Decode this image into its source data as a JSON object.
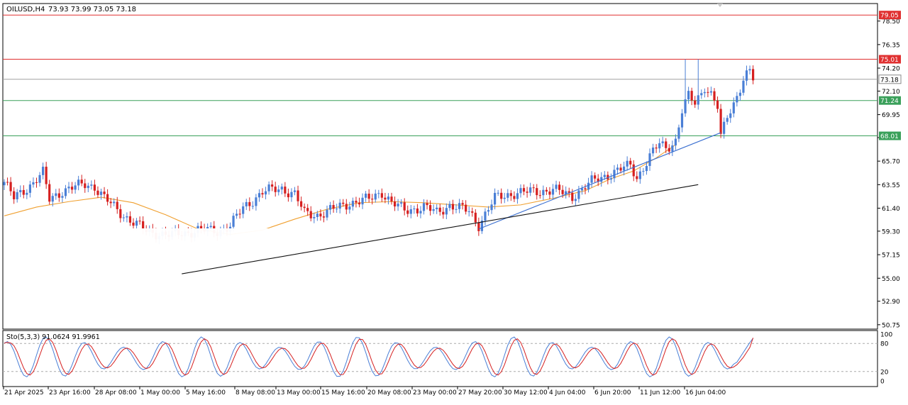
{
  "header": {
    "symbol": "OILUSD,H4",
    "ohlc": "73.93 73.99 73.05 73.18"
  },
  "indicator": {
    "label": "Sto(5,3,3) 91.0624 91.9961",
    "levels": [
      100,
      80,
      20,
      0
    ]
  },
  "colors": {
    "bull": "#4a7fd6",
    "bear": "#d62020",
    "ma": "#f0a030",
    "resistance": "#e03030",
    "support": "#3aa05a",
    "trend_blue": "#3a6fd0",
    "trend_black": "#111111",
    "stoch_main": "#4a7fd6",
    "stoch_signal": "#d62020"
  },
  "chart_data": {
    "type": "candlestick",
    "y_ticks": [
      78.5,
      76.35,
      74.2,
      72.1,
      69.95,
      67.85,
      65.7,
      63.55,
      61.4,
      59.3,
      57.15,
      55.0,
      52.9,
      50.75
    ],
    "ylim": [
      50.35,
      80.1
    ],
    "x_ticks": [
      "21 Apr 2025",
      "23 Apr 16:00",
      "28 Apr 08:00",
      "1 May 00:00",
      "5 May 16:00",
      "8 May 08:00",
      "13 May 00:00",
      "15 May 16:00",
      "20 May 08:00",
      "23 May 00:00",
      "27 May 20:00",
      "30 May 12:00",
      "4 Jun 04:00",
      "6 Jun 20:00",
      "11 Jun 12:00",
      "16 Jun 04:00"
    ],
    "price_lines": [
      {
        "value": 79.05,
        "label": "79.05",
        "kind": "resistance"
      },
      {
        "value": 75.01,
        "label": "75.01",
        "kind": "resistance"
      },
      {
        "value": 73.18,
        "label": "73.18",
        "kind": "current"
      },
      {
        "value": 71.24,
        "label": "71.24",
        "kind": "support"
      },
      {
        "value": 68.01,
        "label": "68.01",
        "kind": "support"
      }
    ],
    "trendlines": [
      {
        "name": "blue",
        "from_bar": 147,
        "from_price": 59.5,
        "to_bar": 222,
        "to_price": 68.3
      },
      {
        "name": "black",
        "from_bar": 55,
        "from_price": 55.4,
        "to_bar": 215,
        "to_price": 63.55
      }
    ],
    "moving_average_points": [
      [
        0,
        60.7
      ],
      [
        10,
        61.5
      ],
      [
        20,
        62.0
      ],
      [
        30,
        62.4
      ],
      [
        40,
        61.9
      ],
      [
        50,
        60.8
      ],
      [
        60,
        59.5
      ],
      [
        70,
        59.0
      ],
      [
        80,
        59.4
      ],
      [
        90,
        60.4
      ],
      [
        100,
        61.3
      ],
      [
        110,
        61.9
      ],
      [
        120,
        62.0
      ],
      [
        130,
        61.9
      ],
      [
        140,
        61.7
      ],
      [
        150,
        61.5
      ],
      [
        160,
        61.7
      ],
      [
        170,
        62.3
      ],
      [
        180,
        63.0
      ],
      [
        188,
        64.1
      ],
      [
        195,
        64.8
      ],
      [
        202,
        66.0
      ],
      [
        208,
        67.2
      ]
    ],
    "stochastic_levels": [
      100,
      80,
      20,
      0
    ],
    "stochastic_last": {
      "main": 91.0624,
      "signal": 91.9961
    }
  }
}
